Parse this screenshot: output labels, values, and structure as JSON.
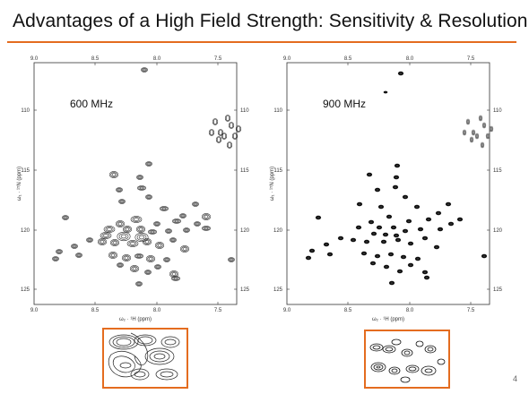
{
  "slide": {
    "title": "Advantages of a High Field Strength: Sensitivity & Resolution",
    "page_number": "4",
    "accent_color": "#e46c1f"
  },
  "spectra": [
    {
      "label": "600 MHz",
      "x_ticks": [
        "9.0",
        "8.5",
        "8.0",
        "7.5"
      ],
      "y_ticks": [
        "110",
        "115",
        "120",
        "125"
      ],
      "x_axis_label": "ω₂ · ¹H (ppm)",
      "y_axis_label": "ω₁ · ¹⁵N (ppm)"
    },
    {
      "label": "900 MHz",
      "x_ticks": [
        "9.0",
        "8.5",
        "8.0",
        "7.5"
      ],
      "y_ticks": [
        "110",
        "115",
        "120",
        "125"
      ],
      "x_axis_label": "ω₂ · ¹H (ppm)",
      "y_axis_label": "ω₁ · ¹⁵N (ppm)"
    }
  ]
}
